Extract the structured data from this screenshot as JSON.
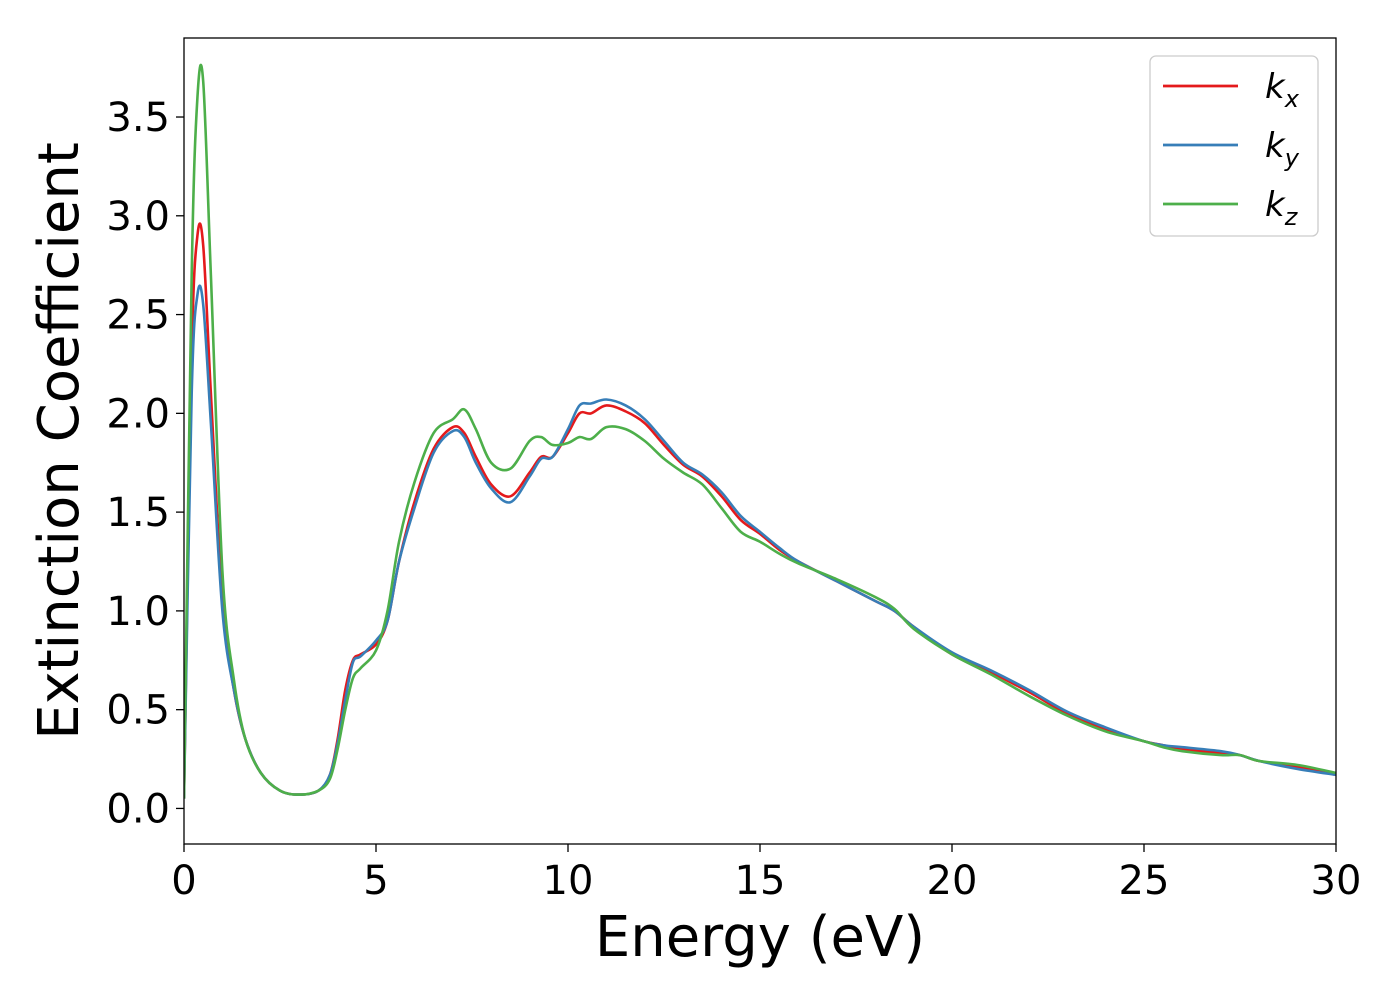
{
  "chart_data": {
    "type": "line",
    "title": "",
    "xlabel": "Energy (eV)",
    "ylabel": "Extinction Coefficient",
    "xlim": [
      0,
      30
    ],
    "ylim": [
      -0.18,
      3.9
    ],
    "xticks": [
      0,
      5,
      10,
      15,
      20,
      25,
      30
    ],
    "xtick_labels": [
      "0",
      "5",
      "10",
      "15",
      "20",
      "25",
      "30"
    ],
    "yticks": [
      0.0,
      0.5,
      1.0,
      1.5,
      2.0,
      2.5,
      3.0,
      3.5
    ],
    "ytick_labels": [
      "0.0",
      "0.5",
      "1.0",
      "1.5",
      "2.0",
      "2.5",
      "3.0",
      "3.5"
    ],
    "grid": false,
    "legend_position": "top-right",
    "x": [
      0,
      0.2,
      0.35,
      0.5,
      0.7,
      1.0,
      1.3,
      1.6,
      2.0,
      2.5,
      3.0,
      3.5,
      3.8,
      4.0,
      4.2,
      4.4,
      4.6,
      5.0,
      5.3,
      5.6,
      6.0,
      6.5,
      7.0,
      7.3,
      7.6,
      8.0,
      8.5,
      9.0,
      9.3,
      9.6,
      10.0,
      10.3,
      10.6,
      11.0,
      11.5,
      12.0,
      12.5,
      13.0,
      13.5,
      14.0,
      14.5,
      15.0,
      15.5,
      16.0,
      17.0,
      18.0,
      18.5,
      19.0,
      20.0,
      21.0,
      22.0,
      23.0,
      24.0,
      25.0,
      25.5,
      26.0,
      27.0,
      27.5,
      28.0,
      29.0,
      30.0
    ],
    "series": [
      {
        "name": "k_x",
        "label_base": "k",
        "label_sub": "x",
        "color": "#e41a1c",
        "values": [
          0.05,
          2.3,
          2.9,
          2.85,
          2.1,
          1.05,
          0.6,
          0.35,
          0.18,
          0.09,
          0.07,
          0.09,
          0.17,
          0.35,
          0.6,
          0.75,
          0.78,
          0.83,
          0.95,
          1.25,
          1.55,
          1.82,
          1.93,
          1.9,
          1.78,
          1.64,
          1.58,
          1.7,
          1.78,
          1.78,
          1.9,
          2.0,
          2.0,
          2.04,
          2.01,
          1.95,
          1.84,
          1.74,
          1.68,
          1.58,
          1.46,
          1.39,
          1.31,
          1.25,
          1.15,
          1.05,
          1.0,
          0.92,
          0.78,
          0.69,
          0.59,
          0.48,
          0.4,
          0.34,
          0.32,
          0.3,
          0.28,
          0.27,
          0.24,
          0.21,
          0.17
        ]
      },
      {
        "name": "k_y",
        "label_base": "k",
        "label_sub": "y",
        "color": "#377eb8",
        "values": [
          0.05,
          2.1,
          2.6,
          2.55,
          1.95,
          1.0,
          0.6,
          0.35,
          0.18,
          0.09,
          0.07,
          0.09,
          0.17,
          0.33,
          0.55,
          0.74,
          0.77,
          0.85,
          0.95,
          1.25,
          1.52,
          1.8,
          1.91,
          1.88,
          1.75,
          1.62,
          1.55,
          1.68,
          1.77,
          1.78,
          1.92,
          2.04,
          2.05,
          2.07,
          2.04,
          1.97,
          1.86,
          1.75,
          1.69,
          1.6,
          1.48,
          1.4,
          1.32,
          1.25,
          1.15,
          1.05,
          1.0,
          0.92,
          0.79,
          0.7,
          0.6,
          0.49,
          0.41,
          0.34,
          0.32,
          0.31,
          0.29,
          0.27,
          0.24,
          0.2,
          0.17
        ]
      },
      {
        "name": "k_z",
        "label_base": "k",
        "label_sub": "z",
        "color": "#4daf4a",
        "values": [
          0.05,
          2.7,
          3.6,
          3.68,
          2.7,
          1.2,
          0.65,
          0.35,
          0.18,
          0.09,
          0.07,
          0.09,
          0.15,
          0.3,
          0.5,
          0.66,
          0.71,
          0.8,
          1.0,
          1.35,
          1.65,
          1.9,
          1.97,
          2.02,
          1.92,
          1.75,
          1.72,
          1.86,
          1.88,
          1.84,
          1.85,
          1.88,
          1.87,
          1.93,
          1.92,
          1.86,
          1.77,
          1.7,
          1.64,
          1.52,
          1.4,
          1.35,
          1.29,
          1.24,
          1.16,
          1.07,
          1.01,
          0.91,
          0.78,
          0.68,
          0.57,
          0.47,
          0.39,
          0.34,
          0.31,
          0.29,
          0.27,
          0.27,
          0.24,
          0.22,
          0.18
        ]
      }
    ]
  }
}
